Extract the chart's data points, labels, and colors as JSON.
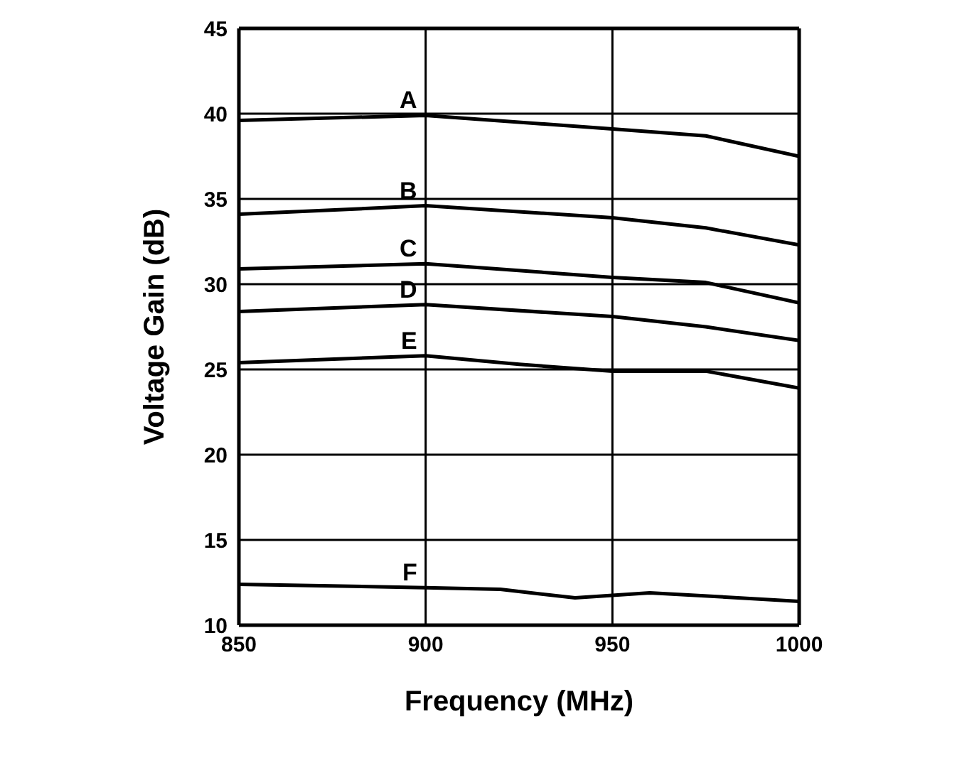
{
  "chart_data": {
    "type": "line",
    "xlabel": "Frequency (MHz)",
    "ylabel": "Voltage Gain (dB)",
    "xlim": [
      850,
      1000
    ],
    "xticks": [
      850,
      900,
      950,
      1000
    ],
    "ylim": [
      10,
      45
    ],
    "yticks": [
      10,
      15,
      20,
      25,
      30,
      35,
      40,
      45
    ],
    "grid": true,
    "legend": false,
    "marker": "none",
    "line_style": "solid",
    "series": [
      {
        "name": "A",
        "color": "#000000",
        "x": [
          850,
          900,
          950,
          975,
          1000
        ],
        "values": [
          39.6,
          39.9,
          39.1,
          38.7,
          37.5
        ]
      },
      {
        "name": "B",
        "color": "#000000",
        "x": [
          850,
          900,
          950,
          975,
          1000
        ],
        "values": [
          34.1,
          34.6,
          33.9,
          33.3,
          32.3
        ]
      },
      {
        "name": "C",
        "color": "#000000",
        "x": [
          850,
          900,
          950,
          975,
          1000
        ],
        "values": [
          30.9,
          31.2,
          30.4,
          30.1,
          28.9
        ]
      },
      {
        "name": "D",
        "color": "#000000",
        "x": [
          850,
          900,
          950,
          975,
          1000
        ],
        "values": [
          28.4,
          28.8,
          28.1,
          27.5,
          26.7
        ]
      },
      {
        "name": "E",
        "color": "#000000",
        "x": [
          850,
          900,
          925,
          950,
          975,
          1000
        ],
        "values": [
          25.4,
          25.8,
          25.3,
          24.9,
          24.9,
          23.9
        ]
      },
      {
        "name": "F",
        "color": "#000000",
        "x": [
          850,
          900,
          920,
          940,
          960,
          1000
        ],
        "values": [
          12.4,
          12.2,
          12.1,
          11.6,
          11.9,
          11.4
        ]
      }
    ]
  }
}
